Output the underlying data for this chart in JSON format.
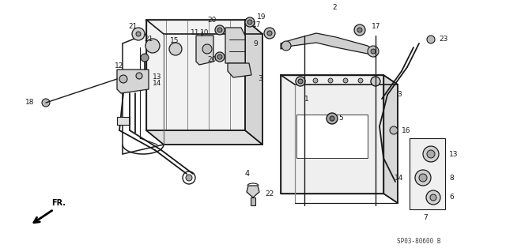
{
  "bg_color": "#ffffff",
  "lc": "#1a1a1a",
  "footer": "SP03-80600 B",
  "figsize": [
    6.4,
    3.19
  ],
  "dpi": 100
}
